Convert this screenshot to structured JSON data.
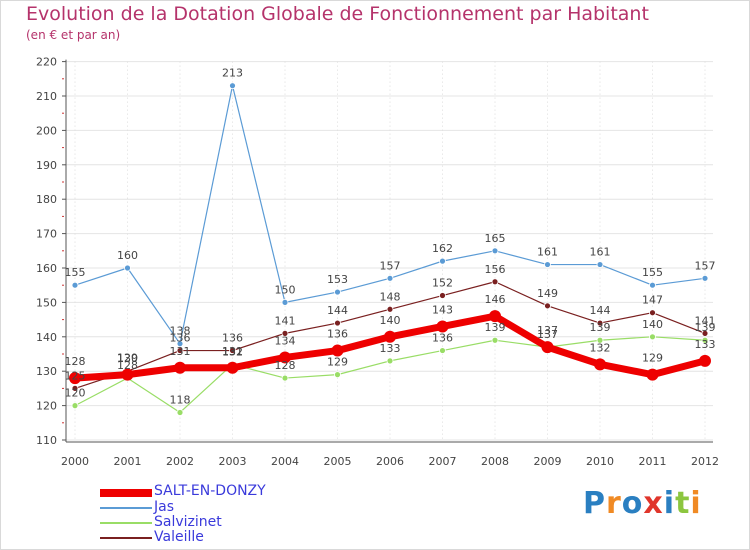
{
  "header": {
    "title": "Evolution de la Dotation Globale de Fonctionnement par Habitant",
    "subtitle": "(en € et par an)"
  },
  "logo": {
    "text": "ProXiti",
    "letters": [
      "P",
      "r",
      "o",
      "x",
      "i",
      "t",
      "i"
    ],
    "colors": [
      "#2a7fc1",
      "#f08a24",
      "#2a7fc1",
      "#e0352b",
      "#2a7fc1",
      "#8cc63f",
      "#f08a24"
    ]
  },
  "chart_data": {
    "type": "line",
    "title": "Evolution de la Dotation Globale de Fonctionnement par Habitant",
    "subtitle": "(en € et par an)",
    "xlabel": "",
    "ylabel": "",
    "ylim": [
      110,
      220
    ],
    "yticks": [
      110,
      120,
      130,
      140,
      150,
      160,
      170,
      180,
      190,
      200,
      210,
      220
    ],
    "categories": [
      "2000",
      "2001",
      "2002",
      "2003",
      "2004",
      "2005",
      "2006",
      "2007",
      "2008",
      "2009",
      "2010",
      "2011",
      "2012"
    ],
    "legend_position": "bottom-left",
    "series": [
      {
        "name": "SALT-EN-DONZY",
        "color": "#ee0000",
        "width": 7,
        "marker": 6,
        "values": [
          128,
          129,
          131,
          131,
          134,
          136,
          140,
          143,
          146,
          137,
          132,
          129,
          133
        ]
      },
      {
        "name": "Jas",
        "color": "#5b9bd5",
        "width": 1.2,
        "marker": 3,
        "values": [
          155,
          160,
          138,
          213,
          150,
          153,
          157,
          162,
          165,
          161,
          161,
          155,
          157
        ]
      },
      {
        "name": "Salvizinet",
        "color": "#99dd66",
        "width": 1.2,
        "marker": 3,
        "values": [
          120,
          128,
          118,
          132,
          128,
          129,
          133,
          136,
          139,
          137,
          139,
          140,
          139
        ]
      },
      {
        "name": "Valeille",
        "color": "#7a2020",
        "width": 1.2,
        "marker": 3,
        "values": [
          125,
          130,
          136,
          136,
          141,
          144,
          148,
          152,
          156,
          149,
          144,
          147,
          141
        ]
      }
    ]
  }
}
